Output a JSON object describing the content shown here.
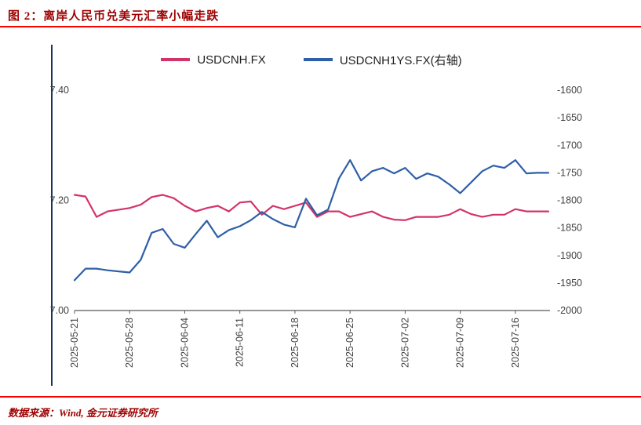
{
  "header": {
    "title": "图 2：离岸人民币兑美元汇率小幅走跌"
  },
  "footer": {
    "source": "数据来源：Wind, 金元证券研究所"
  },
  "colors": {
    "title_red": "#9e0000",
    "rule_red": "#ff0000",
    "left_border_navy": "#17375e",
    "axis_line": "#595959",
    "tick_label": "#404040",
    "series_pink": "#d23369",
    "series_blue": "#2e5fa7"
  },
  "chart_data": {
    "type": "line",
    "title": "",
    "grid": false,
    "legend_position": "top",
    "x": [
      "2025-05-21",
      "2025-05-22",
      "2025-05-23",
      "2025-05-26",
      "2025-05-27",
      "2025-05-28",
      "2025-05-29",
      "2025-05-30",
      "2025-06-02",
      "2025-06-03",
      "2025-06-04",
      "2025-06-05",
      "2025-06-06",
      "2025-06-09",
      "2025-06-10",
      "2025-06-11",
      "2025-06-12",
      "2025-06-13",
      "2025-06-16",
      "2025-06-17",
      "2025-06-18",
      "2025-06-19",
      "2025-06-20",
      "2025-06-23",
      "2025-06-24",
      "2025-06-25",
      "2025-06-26",
      "2025-06-27",
      "2025-06-30",
      "2025-07-01",
      "2025-07-02",
      "2025-07-03",
      "2025-07-04",
      "2025-07-07",
      "2025-07-08",
      "2025-07-09",
      "2025-07-10",
      "2025-07-11",
      "2025-07-14",
      "2025-07-15",
      "2025-07-16",
      "2025-07-17",
      "2025-07-18",
      "2025-07-21"
    ],
    "x_tick_labels": [
      "2025-05-21",
      "2025-05-28",
      "2025-06-04",
      "2025-06-11",
      "2025-06-18",
      "2025-06-25",
      "2025-07-02",
      "2025-07-09",
      "2025-07-16"
    ],
    "x_tick_indices": [
      0,
      5,
      10,
      15,
      20,
      25,
      30,
      35,
      40
    ],
    "left_axis": {
      "min": 7.0,
      "max": 7.4,
      "ticks": [
        "7.40",
        "7.20",
        "7.00"
      ]
    },
    "right_axis": {
      "min": -2000,
      "max": -1600,
      "ticks": [
        "-1600",
        "-1650",
        "-1700",
        "-1750",
        "-1800",
        "-1850",
        "-1900",
        "-1950",
        "-2000"
      ]
    },
    "series": [
      {
        "name": "USDCNH.FX",
        "axis": "left",
        "color": "#d23369",
        "values": [
          7.21,
          7.207,
          7.17,
          7.18,
          7.183,
          7.186,
          7.192,
          7.206,
          7.21,
          7.204,
          7.19,
          7.18,
          7.186,
          7.19,
          7.18,
          7.196,
          7.198,
          7.174,
          7.19,
          7.184,
          7.19,
          7.196,
          7.17,
          7.18,
          7.18,
          7.17,
          7.175,
          7.18,
          7.17,
          7.165,
          7.164,
          7.17,
          7.17,
          7.17,
          7.174,
          7.184,
          7.175,
          7.17,
          7.174,
          7.174,
          7.184,
          7.18,
          7.18,
          7.18
        ]
      },
      {
        "name": "USDCNH1YS.FX(右轴)",
        "axis": "right",
        "color": "#2e5fa7",
        "values": [
          -1945,
          -1924,
          -1924,
          -1927,
          -1929,
          -1931,
          -1908,
          -1859,
          -1852,
          -1879,
          -1886,
          -1861,
          -1837,
          -1867,
          -1854,
          -1847,
          -1836,
          -1821,
          -1834,
          -1844,
          -1849,
          -1797,
          -1827,
          -1817,
          -1760,
          -1727,
          -1764,
          -1747,
          -1741,
          -1751,
          -1741,
          -1761,
          -1751,
          -1757,
          -1771,
          -1787,
          -1767,
          -1747,
          -1737,
          -1741,
          -1727,
          -1751,
          -1750,
          -1750
        ]
      }
    ]
  }
}
